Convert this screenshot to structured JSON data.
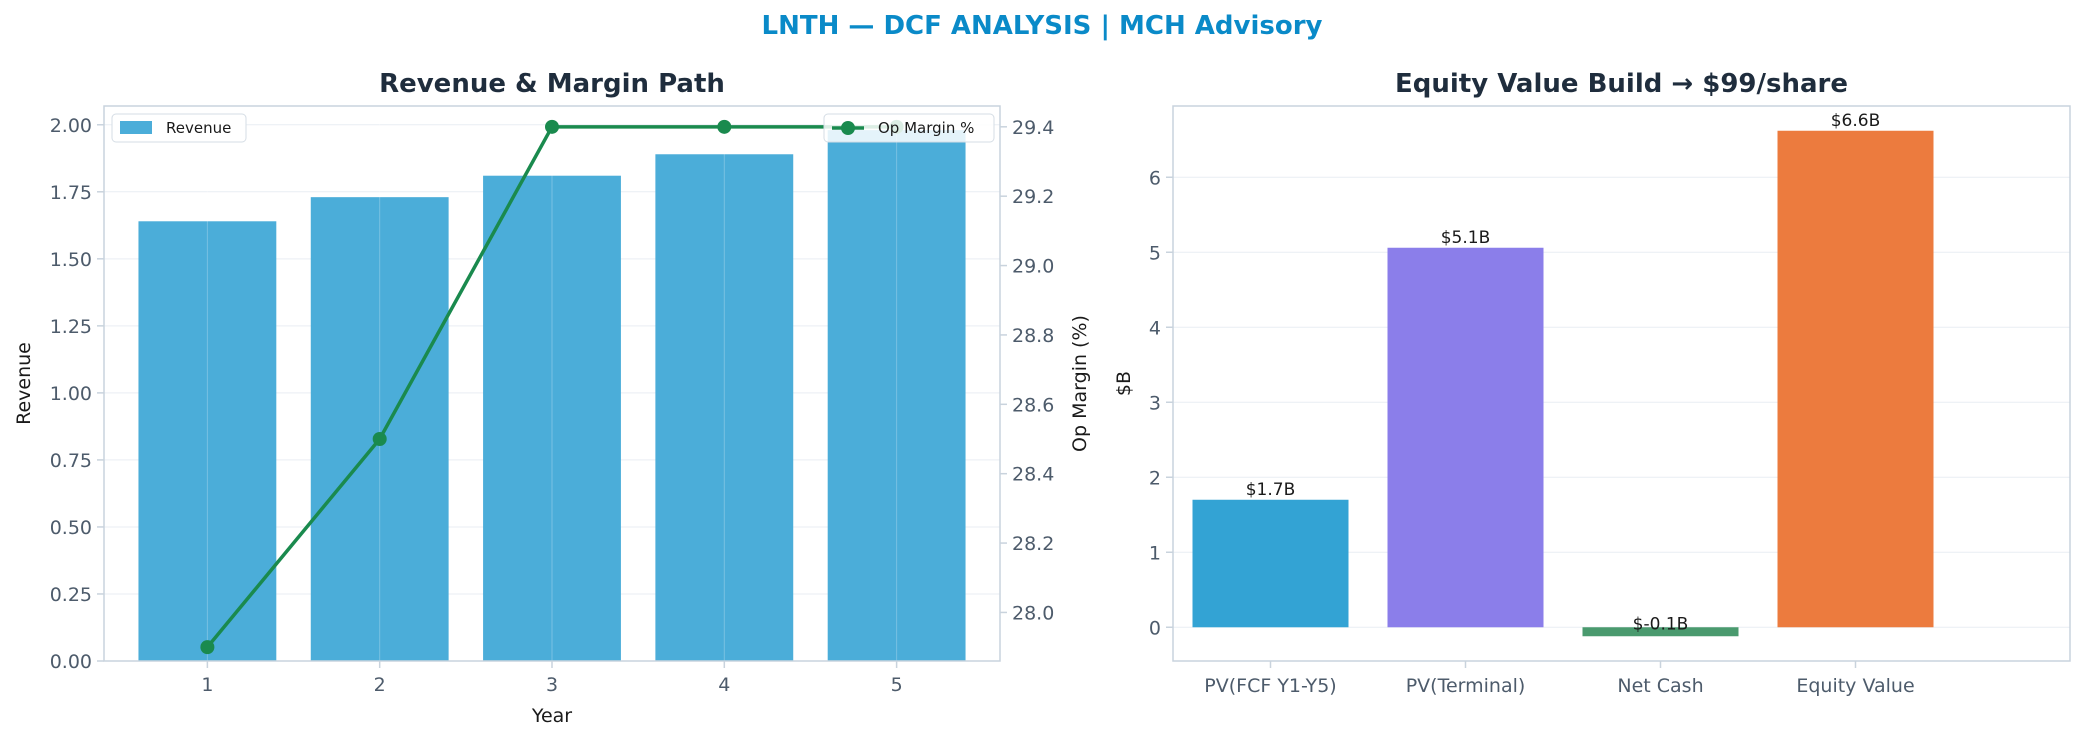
{
  "suptitle": "LNTH — DCF ANALYSIS | MCH Advisory",
  "colors": {
    "title_blue": "#0a8ac8",
    "bar_blue": "#4badd9",
    "line_green": "#1a8a4e",
    "axis": "#c9d3dd",
    "tick_text": "#4d5b6b",
    "heading": "#1f2d3d"
  },
  "chart_data": [
    {
      "type": "bar",
      "title": "Revenue & Margin Path",
      "xlabel": "Year",
      "ylabel": "Revenue",
      "ylabel_right": "Op Margin (%)",
      "categories": [
        "1",
        "2",
        "3",
        "4",
        "5"
      ],
      "series": [
        {
          "name": "Revenue",
          "type": "bar",
          "axis": "left",
          "values": [
            1.64,
            1.73,
            1.81,
            1.89,
            1.98
          ],
          "color": "#4badd9"
        },
        {
          "name": "Op Margin %",
          "type": "line",
          "axis": "right",
          "values": [
            27.9,
            28.5,
            29.4,
            29.4,
            29.4
          ],
          "color": "#1a8a4e"
        }
      ],
      "ylim": [
        0,
        2.07
      ],
      "yticks": [
        "0.00",
        "0.25",
        "0.50",
        "0.75",
        "1.00",
        "1.25",
        "1.50",
        "1.75",
        "2.00"
      ],
      "ylim_right": [
        27.86,
        29.46
      ],
      "yticks_right": [
        "28.0",
        "28.2",
        "28.4",
        "28.6",
        "28.8",
        "29.0",
        "29.2",
        "29.4"
      ],
      "grid": true,
      "legend": [
        "upper-left",
        "upper-right"
      ]
    },
    {
      "type": "bar",
      "title": "Equity Value Build → $99/share",
      "xlabel": "",
      "ylabel": "$B",
      "categories": [
        "PV(FCF Y1-Y5)",
        "PV(Terminal)",
        "Net Cash",
        "Equity Value"
      ],
      "values": [
        1.7,
        5.06,
        -0.12,
        6.62
      ],
      "labels": [
        "$1.7B",
        "$5.1B",
        "$-0.1B",
        "$6.6B"
      ],
      "colors": [
        "#33a3d4",
        "#8b7eea",
        "#4a9a6e",
        "#ec7b3e"
      ],
      "ylim": [
        -0.45,
        6.95
      ],
      "yticks": [
        "0",
        "1",
        "2",
        "3",
        "4",
        "5",
        "6"
      ],
      "grid": true
    }
  ]
}
